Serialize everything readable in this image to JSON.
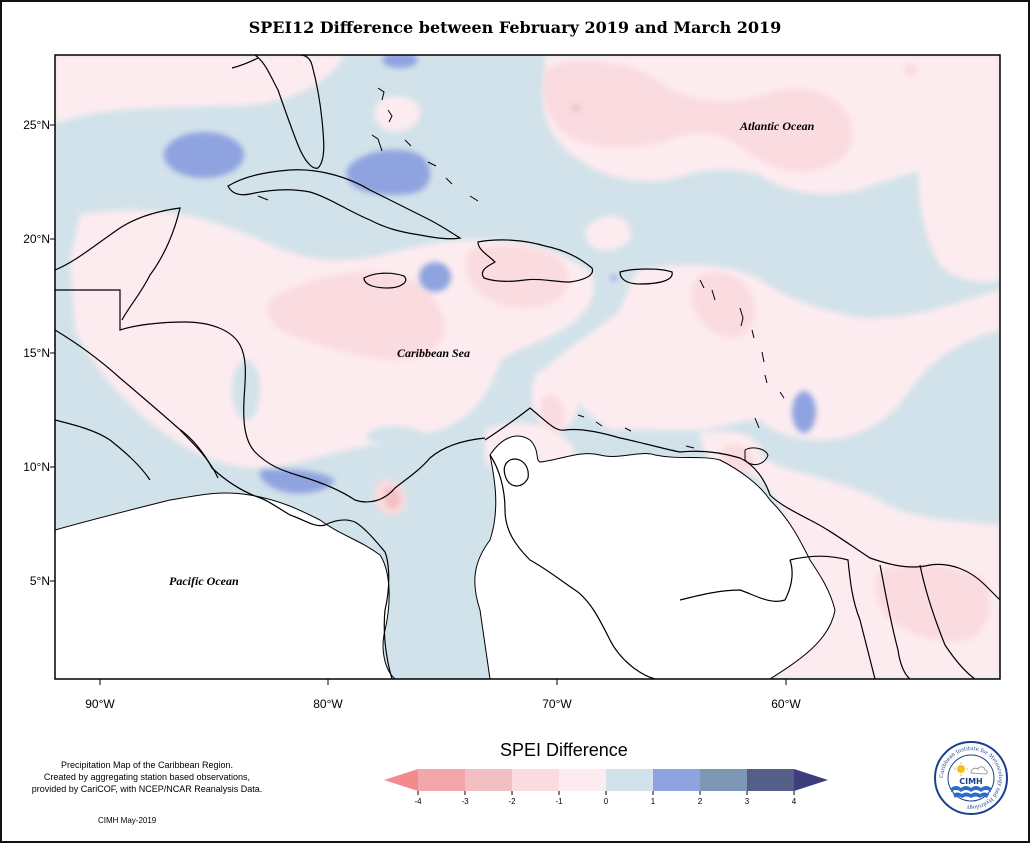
{
  "title": "SPEI12 Difference between February 2019 and March 2019",
  "axes": {
    "lat_labels": [
      "25°N",
      "20°N",
      "15°N",
      "10°N",
      "5°N"
    ],
    "lon_labels": [
      "90°W",
      "80°W",
      "70°W",
      "60°W"
    ]
  },
  "places": {
    "atlantic": "Atlantic Ocean",
    "caribbean": "Caribbean Sea",
    "pacific": "Pacific Ocean"
  },
  "legend": {
    "title": "SPEI Difference",
    "ticks": [
      "-4",
      "-3",
      "-2",
      "-1",
      "0",
      "1",
      "2",
      "3",
      "4"
    ],
    "colors": [
      "#f4898e",
      "#f4a7aa",
      "#f2c0c2",
      "#fadbe0",
      "#fdecef",
      "#d2e2ea",
      "#8fa3e0",
      "#7d98b4",
      "#555e86",
      "#3d3d7e"
    ]
  },
  "credit": {
    "line1": "Precipitation Map of the Caribbean Region.",
    "line2": "Created by aggregating station based observations,",
    "line3": "provided by CariCOF, with NCEP/NCAR Reanalysis Data.",
    "date": "CIMH May-2019"
  },
  "logo": {
    "ring_text": "Caribbean Institute for Meteorology and Hydrology",
    "short": "CIMH"
  }
}
